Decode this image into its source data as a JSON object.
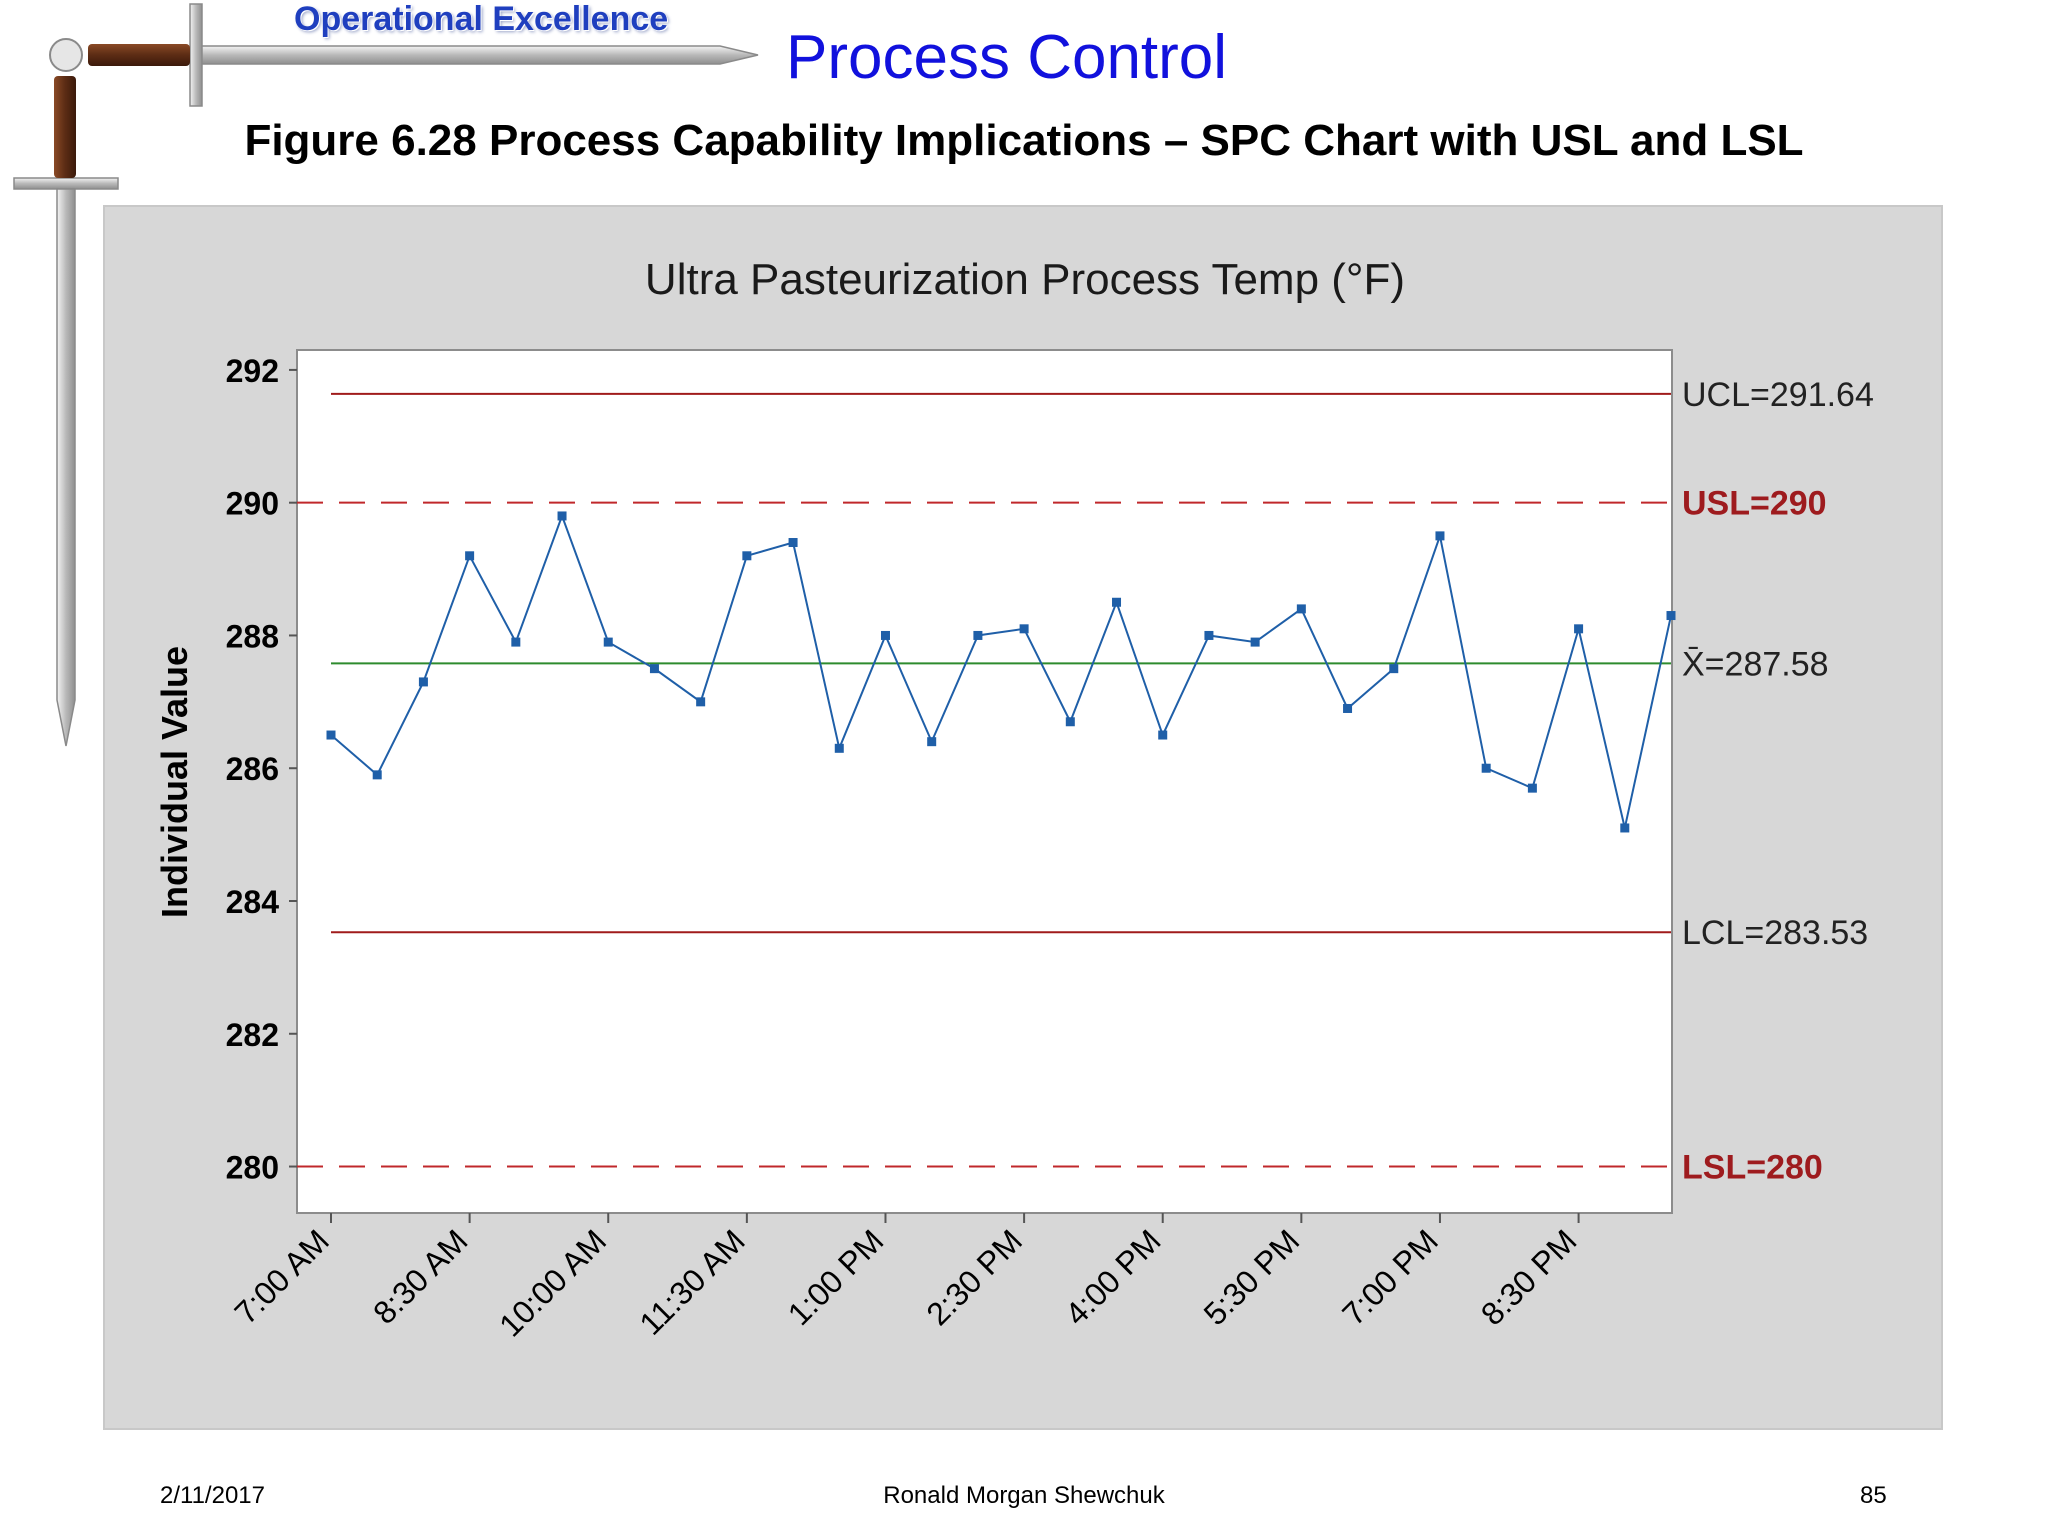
{
  "header": {
    "brand": "Operational Excellence",
    "title": "Process Control",
    "figure_caption": "Figure 6.28  Process Capability Implications – SPC Chart with USL and LSL"
  },
  "footer": {
    "date": "2/11/2017",
    "author": "Ronald Morgan Shewchuk",
    "page": "85"
  },
  "decoration": {
    "icon": "sword-icon"
  },
  "colors": {
    "panel_bg": "#d7d7d7",
    "plot_bg": "#ffffff",
    "data_line": "#1f5fa8",
    "center_line": "#2e8b2e",
    "control_limits": "#a01b1b",
    "spec_limits": "#c0282b",
    "spec_label": "#9e1b1e"
  },
  "chart_data": {
    "type": "line",
    "title": "Ultra Pasteurization Process Temp (°F)",
    "ylabel": "Individual Value",
    "xlabel": "",
    "ylim": [
      279.3,
      292.3
    ],
    "yticks": [
      280,
      282,
      284,
      286,
      288,
      290,
      292
    ],
    "xtick_labels": [
      "7:00 AM",
      "8:30 AM",
      "10:00 AM",
      "11:30 AM",
      "1:00 PM",
      "2:30 PM",
      "4:00 PM",
      "5:30 PM",
      "7:00 PM",
      "8:30 PM"
    ],
    "xtick_every": 3,
    "grid": false,
    "series": [
      {
        "values": [
          286.5,
          285.9,
          287.3,
          289.2,
          287.9,
          289.8,
          287.9,
          287.5,
          287.0,
          289.2,
          289.4,
          286.3,
          288.0,
          286.4,
          288.0,
          288.1,
          286.7,
          288.5,
          286.5,
          288.0,
          287.9,
          288.4,
          286.9,
          287.5,
          289.5,
          286.0,
          285.7,
          288.1,
          285.1,
          288.3
        ]
      }
    ],
    "reference_lines": [
      {
        "label": "UCL=291.64",
        "value": 291.64,
        "style": "solid",
        "kind": "control"
      },
      {
        "label": "USL=290",
        "value": 290,
        "style": "dashed",
        "kind": "spec"
      },
      {
        "label": "X̄=287.58",
        "value": 287.58,
        "style": "solid",
        "kind": "center"
      },
      {
        "label": "LCL=283.53",
        "value": 283.53,
        "style": "solid",
        "kind": "control"
      },
      {
        "label": "LSL=280",
        "value": 280,
        "style": "dashed",
        "kind": "spec"
      }
    ]
  }
}
